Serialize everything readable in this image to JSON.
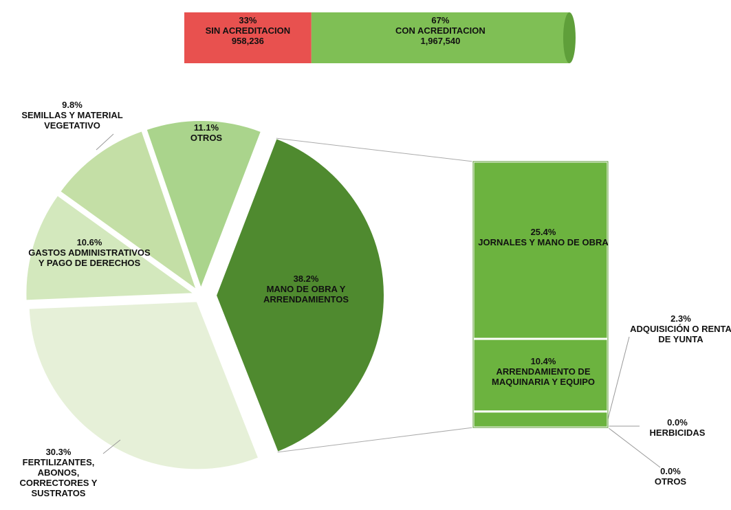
{
  "chart_data": [
    {
      "type": "bar",
      "orientation": "horizontal",
      "stacked": true,
      "series": [
        {
          "name": "SIN ACREDITACION",
          "color": "#e8514f",
          "values": [
            33
          ],
          "value_labels": [
            "33%"
          ],
          "count_labels": [
            "958,236"
          ]
        },
        {
          "name": "CON ACREDITACION",
          "color": "#7fbf55",
          "values": [
            67
          ],
          "value_labels": [
            "67%"
          ],
          "count_labels": [
            "1,967,540"
          ]
        }
      ]
    },
    {
      "type": "pie",
      "categories": [
        "MANO DE OBRA Y ARRENDAMIENTOS",
        "FERTILIZANTES, ABONOS, CORRECTORES Y SUSTRATOS",
        "GASTOS ADMINISTRATIVOS Y PAGO DE DERECHOS",
        "SEMILLAS Y MATERIAL VEGETATIVO",
        "OTROS"
      ],
      "values": [
        38.2,
        30.3,
        10.6,
        9.8,
        11.1
      ],
      "value_labels": [
        "38.2%",
        "30.3%",
        "10.6%",
        "9.8%",
        "11.1%"
      ],
      "colors": [
        "#4f8a2f",
        "#e6f0d8",
        "#d3e8bd",
        "#c4dfa6",
        "#aad48c"
      ]
    },
    {
      "type": "bar",
      "stacked": true,
      "categories": [
        "OTROS",
        "HERBICIDAS",
        "ADQUISICIÓN O RENTA DE YUNTA",
        "ARRENDAMIENTO DE MAQUINARIA Y EQUIPO",
        "JORNALES Y MANO DE OBRA"
      ],
      "values": [
        0.0,
        0.0,
        2.3,
        10.4,
        25.4
      ],
      "value_labels": [
        "0.0%",
        "0.0%",
        "2.3%",
        "10.4%",
        "25.4%"
      ],
      "color": "#6cb33f"
    }
  ]
}
